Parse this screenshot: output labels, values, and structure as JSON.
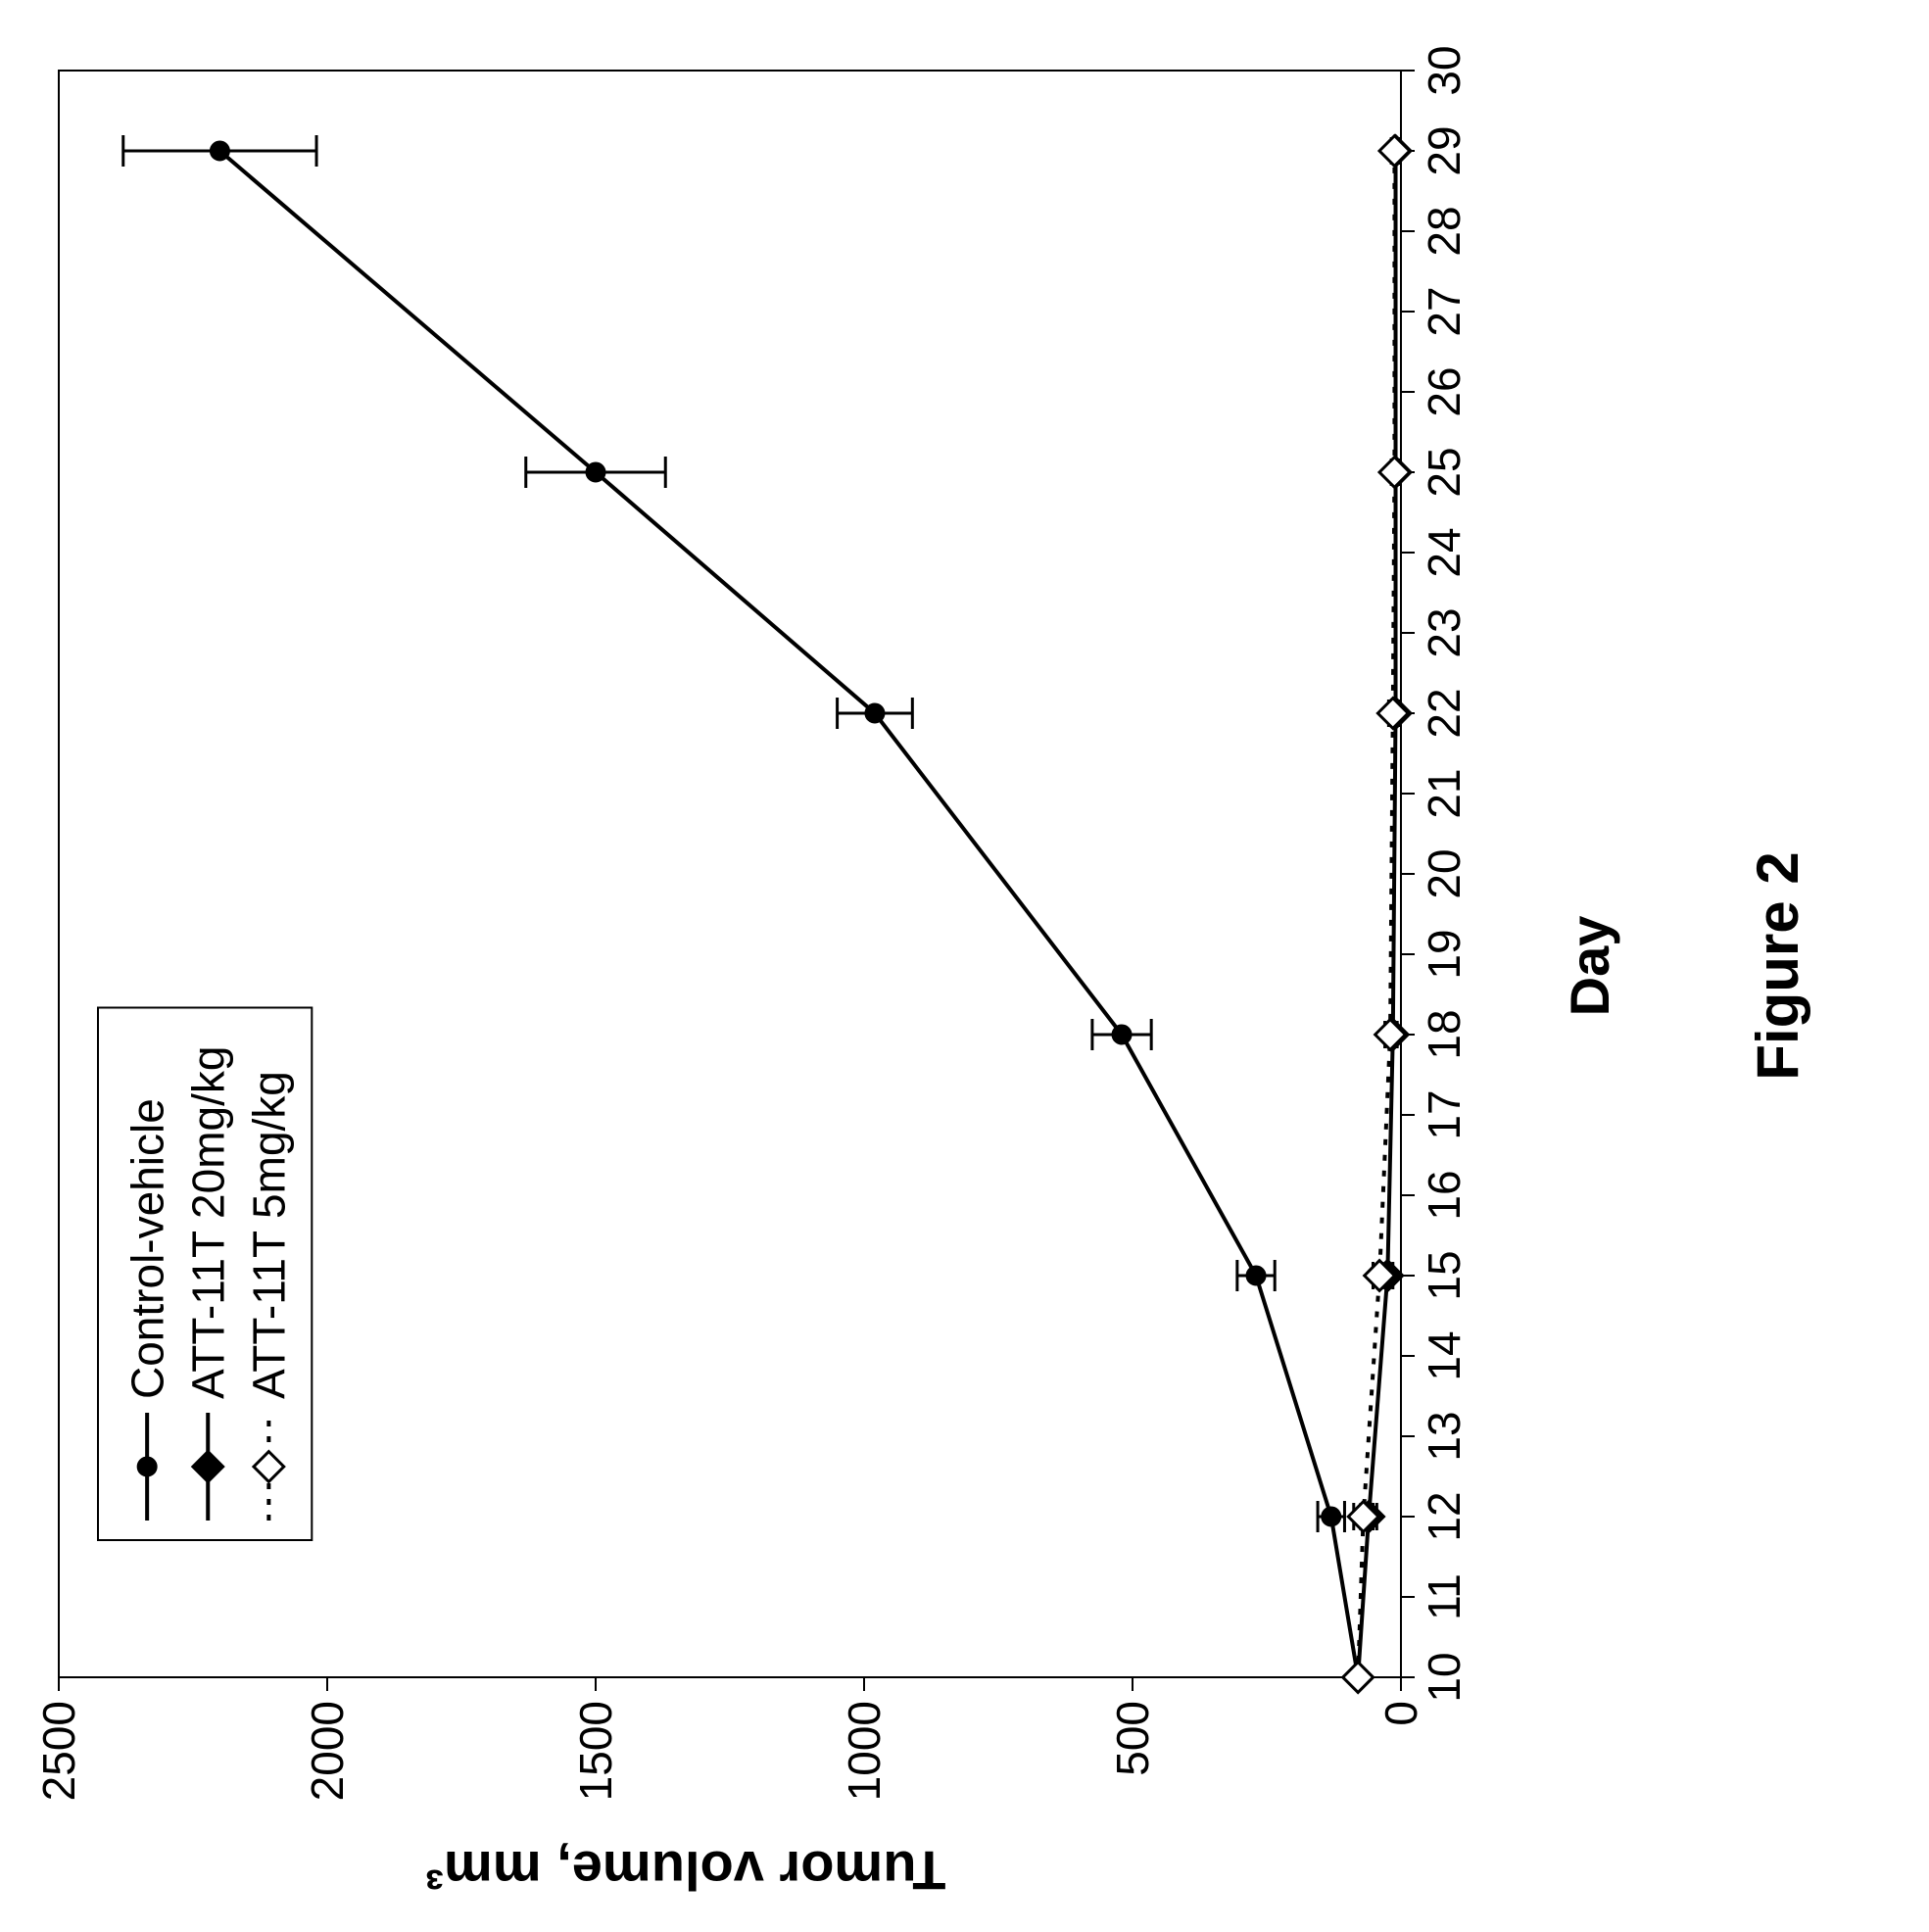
{
  "figure_caption": "Figure 2",
  "chart": {
    "type": "line-errorbar",
    "x_axis": {
      "label": "Day",
      "label_fontsize": 56,
      "label_fontweight": "bold",
      "min": 10,
      "max": 30,
      "tick_step": 1,
      "tick_labels": [
        "10",
        "11",
        "12",
        "13",
        "14",
        "15",
        "16",
        "17",
        "18",
        "19",
        "20",
        "21",
        "22",
        "23",
        "24",
        "25",
        "26",
        "27",
        "28",
        "29",
        "30"
      ],
      "tick_fontsize": 46
    },
    "y_axis": {
      "label": "Tumor volume, mm³",
      "label_fontsize": 56,
      "label_fontweight": "bold",
      "min": 0,
      "max": 2500,
      "tick_step": 500,
      "tick_labels": [
        "0",
        "500",
        "1000",
        "1500",
        "2000",
        "2500"
      ],
      "tick_fontsize": 46
    },
    "background_color": "#ffffff",
    "plot_border_color": "#000000",
    "plot_border_width": 2,
    "gridlines": false,
    "legend": {
      "position": "upper-left-inside",
      "border_color": "#000000",
      "border_width": 2,
      "bg_color": "#ffffff",
      "fontsize": 46,
      "items": [
        {
          "label": "Control-vehicle",
          "marker": "circle-filled",
          "line": "solid"
        },
        {
          "label": "ATT-11T 20mg/kg",
          "marker": "diamond-filled",
          "line": "solid"
        },
        {
          "label": "ATT-11T 5mg/kg",
          "marker": "diamond-open",
          "line": "dotted"
        }
      ]
    },
    "series": [
      {
        "name": "Control-vehicle",
        "line_style": "solid",
        "line_width": 4,
        "line_color": "#000000",
        "marker": "circle",
        "marker_fill": "#000000",
        "marker_stroke": "#000000",
        "marker_size": 18,
        "errorbar_color": "#000000",
        "errorbar_width": 3,
        "errorbar_cap": 16,
        "points": [
          {
            "x": 10,
            "y": 80,
            "err": 0
          },
          {
            "x": 12,
            "y": 130,
            "err": 25
          },
          {
            "x": 15,
            "y": 270,
            "err": 35
          },
          {
            "x": 18,
            "y": 520,
            "err": 55
          },
          {
            "x": 22,
            "y": 980,
            "err": 70
          },
          {
            "x": 25,
            "y": 1500,
            "err": 130
          },
          {
            "x": 29,
            "y": 2200,
            "err": 180
          }
        ]
      },
      {
        "name": "ATT-11T 20mg/kg",
        "line_style": "solid",
        "line_width": 4,
        "line_color": "#000000",
        "marker": "diamond",
        "marker_fill": "#000000",
        "marker_stroke": "#000000",
        "marker_size": 20,
        "errorbar_color": "#000000",
        "errorbar_width": 3,
        "errorbar_cap": 14,
        "points": [
          {
            "x": 10,
            "y": 80,
            "err": 0
          },
          {
            "x": 12,
            "y": 60,
            "err": 15
          },
          {
            "x": 15,
            "y": 25,
            "err": 10
          },
          {
            "x": 18,
            "y": 15,
            "err": 8
          },
          {
            "x": 22,
            "y": 10,
            "err": 6
          },
          {
            "x": 25,
            "y": 10,
            "err": 6
          },
          {
            "x": 29,
            "y": 10,
            "err": 6
          }
        ]
      },
      {
        "name": "ATT-11T 5mg/kg",
        "line_style": "dotted",
        "line_width": 4,
        "line_color": "#000000",
        "marker": "diamond",
        "marker_fill": "#ffffff",
        "marker_stroke": "#000000",
        "marker_size": 20,
        "errorbar_color": "#000000",
        "errorbar_width": 3,
        "errorbar_cap": 14,
        "points": [
          {
            "x": 10,
            "y": 80,
            "err": 0
          },
          {
            "x": 12,
            "y": 70,
            "err": 18
          },
          {
            "x": 15,
            "y": 40,
            "err": 12
          },
          {
            "x": 18,
            "y": 20,
            "err": 10
          },
          {
            "x": 22,
            "y": 15,
            "err": 8
          },
          {
            "x": 25,
            "y": 12,
            "err": 6
          },
          {
            "x": 29,
            "y": 12,
            "err": 6
          }
        ]
      }
    ]
  },
  "caption_fontsize": 60
}
